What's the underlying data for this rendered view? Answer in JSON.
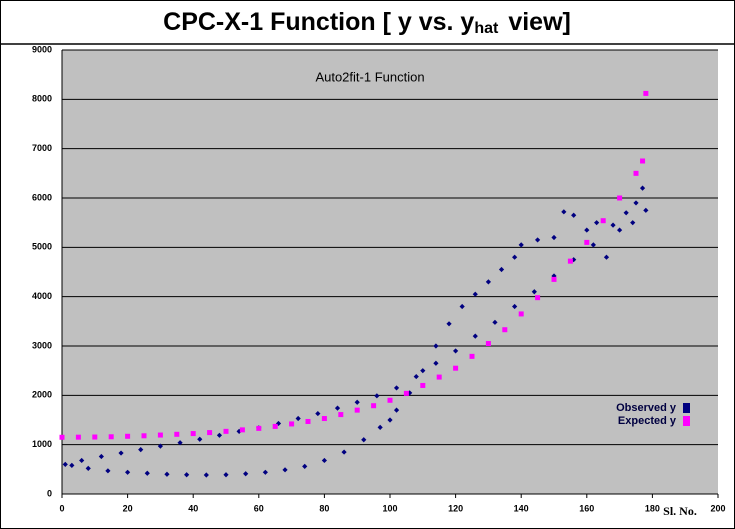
{
  "chart_data": {
    "type": "scatter",
    "title": "CPC-X-1 Function [ y vs. y",
    "title_subscript": "hat",
    "title_end": "view]",
    "subtitle": "Auto2fit-1 Function",
    "x_label": "Sl. No.",
    "xlim": [
      0,
      200
    ],
    "xticks": [
      0,
      20,
      40,
      60,
      80,
      100,
      120,
      140,
      160,
      180,
      200
    ],
    "ylim": [
      0,
      9000
    ],
    "yticks": [
      0,
      1000,
      2000,
      3000,
      4000,
      5000,
      6000,
      7000,
      8000,
      9000
    ],
    "grid": true,
    "legend": "right",
    "series": [
      {
        "name": "Observed y",
        "color": "#000080",
        "marker": "diamond",
        "x": [
          1,
          3,
          6,
          8,
          12,
          14,
          18,
          20,
          24,
          26,
          30,
          32,
          36,
          38,
          42,
          44,
          48,
          50,
          54,
          56,
          60,
          62,
          66,
          68,
          72,
          74,
          78,
          80,
          84,
          86,
          90,
          92,
          96,
          97,
          100,
          102,
          102,
          106,
          108,
          110,
          114,
          114,
          118,
          120,
          122,
          126,
          126,
          130,
          132,
          134,
          138,
          138,
          140,
          144,
          145,
          150,
          150,
          153,
          156,
          156,
          160,
          162,
          163,
          166,
          168,
          170,
          172,
          174,
          175,
          177,
          178
        ],
        "values": [
          600,
          580,
          680,
          520,
          760,
          470,
          830,
          440,
          900,
          420,
          970,
          400,
          1040,
          390,
          1110,
          385,
          1190,
          390,
          1270,
          410,
          1340,
          440,
          1430,
          490,
          1530,
          560,
          1630,
          680,
          1740,
          850,
          1860,
          1100,
          1990,
          1350,
          1500,
          2150,
          1700,
          2050,
          2380,
          2500,
          2650,
          3000,
          3450,
          2900,
          3800,
          3200,
          4050,
          4300,
          3480,
          4550,
          3800,
          4800,
          5050,
          4100,
          5150,
          4420,
          5200,
          5720,
          4750,
          5650,
          5350,
          5050,
          5500,
          4800,
          5450,
          5350,
          5700,
          5500,
          5900,
          6200,
          5750
        ]
      },
      {
        "name": "Expected y",
        "color": "#ff00ff",
        "marker": "square",
        "x": [
          0,
          5,
          10,
          15,
          20,
          25,
          30,
          35,
          40,
          45,
          50,
          55,
          60,
          65,
          70,
          75,
          80,
          85,
          90,
          95,
          100,
          105,
          110,
          115,
          120,
          125,
          130,
          135,
          140,
          145,
          150,
          155,
          160,
          165,
          170,
          175,
          177,
          178
        ],
        "values": [
          1150,
          1152,
          1155,
          1160,
          1170,
          1180,
          1195,
          1210,
          1225,
          1245,
          1270,
          1300,
          1330,
          1370,
          1420,
          1470,
          1530,
          1610,
          1700,
          1790,
          1900,
          2040,
          2200,
          2370,
          2550,
          2790,
          3050,
          3330,
          3650,
          3980,
          4350,
          4720,
          5100,
          5540,
          6000,
          6500,
          6750,
          8120
        ]
      }
    ]
  }
}
